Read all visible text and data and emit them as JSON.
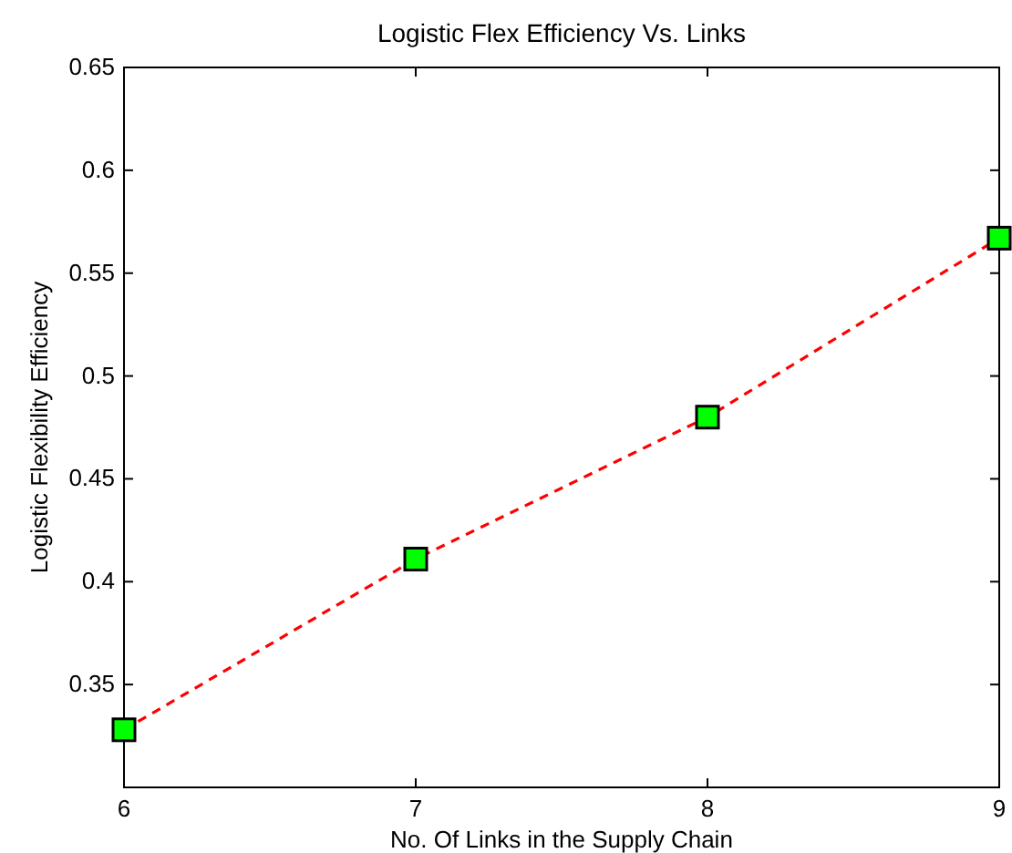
{
  "chart_data": {
    "type": "line",
    "title": "Logistic Flex Efficiency Vs. Links",
    "xlabel": "No. Of Links in the Supply Chain",
    "ylabel": "Logistic Flexibility Efficiency",
    "x": [
      6,
      7,
      8,
      9
    ],
    "series": [
      {
        "color": "#ff0000",
        "values": [
          0.328,
          0.411,
          0.48,
          0.567
        ]
      }
    ],
    "xlim": [
      6,
      9
    ],
    "xticks": [
      6,
      7,
      8,
      9
    ],
    "ylim": [
      0.3,
      0.65
    ],
    "yticks": [
      0.35,
      0.4,
      0.45,
      0.5,
      0.55,
      0.6,
      0.65
    ],
    "grid": false,
    "marker": "square",
    "line_style": "dashed"
  }
}
